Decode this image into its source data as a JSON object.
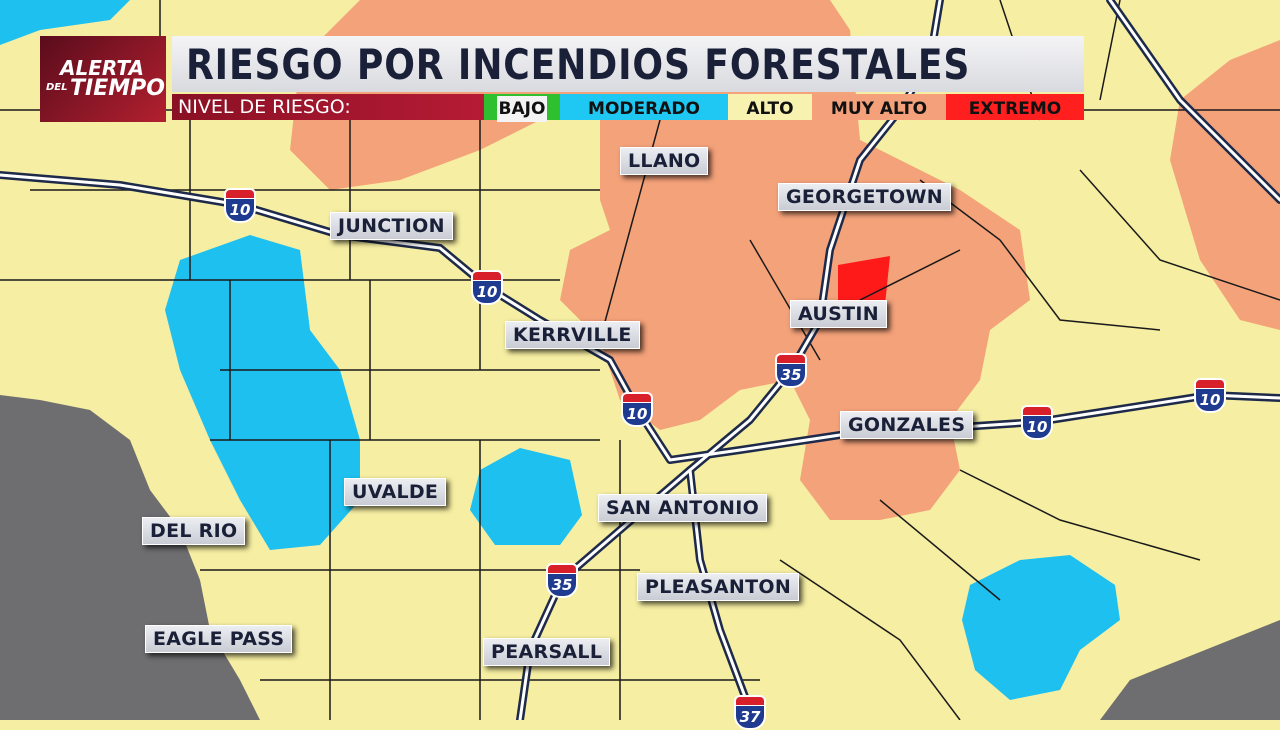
{
  "header": {
    "logo": {
      "line1": "ALERTA",
      "line2": "DEL",
      "line3": "TIEMPO"
    },
    "title": "RIESGO POR INCENDIOS FORESTALES",
    "legend_label": "NIVEL DE RIESGO:",
    "levels": [
      {
        "label": "BAJO",
        "color": "#2ec02e"
      },
      {
        "label": "MODERADO",
        "color": "#1ec8f2"
      },
      {
        "label": "ALTO",
        "color": "#f8f2b0"
      },
      {
        "label": "MUY ALTO",
        "color": "#f4a07a"
      },
      {
        "label": "EXTREMO",
        "color": "#ff1f1f"
      }
    ]
  },
  "map": {
    "colors": {
      "alto": "#f6eea2",
      "muy_alto": "#f4a27a",
      "moderado": "#1ec0f0",
      "extremo": "#ff1a1a",
      "mexico": "#6e6e70"
    },
    "cities": [
      "LLANO",
      "GEORGETOWN",
      "JUNCTION",
      "AUSTIN",
      "KERRVILLE",
      "GONZALES",
      "UVALDE",
      "SAN ANTONIO",
      "DEL RIO",
      "PLEASANTON",
      "EAGLE PASS",
      "PEARSALL"
    ],
    "highways": [
      "10",
      "10",
      "10",
      "10",
      "10",
      "35",
      "35",
      "37"
    ]
  }
}
